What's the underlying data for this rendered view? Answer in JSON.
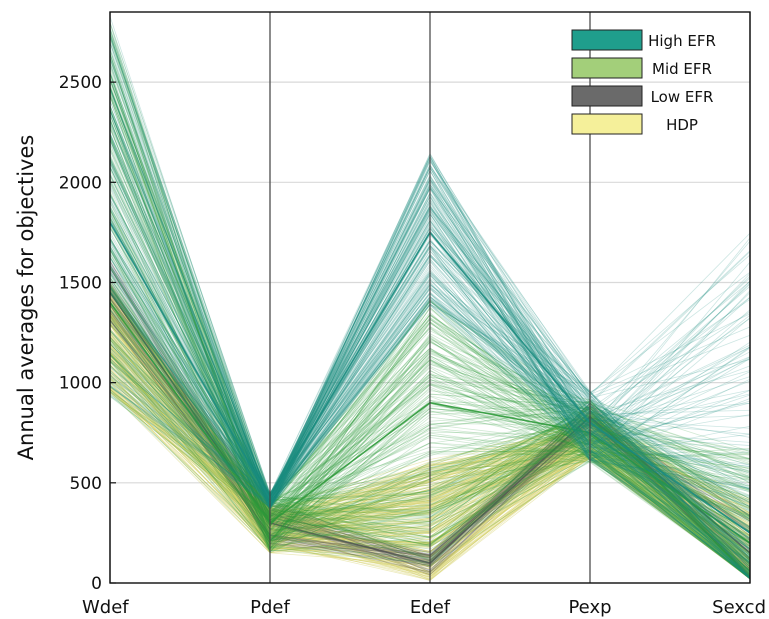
{
  "chart_data": {
    "type": "parallel-coordinates",
    "title": "",
    "ylabel": "Annual averages for objectives",
    "xlabel": "",
    "axes": [
      "Wdef",
      "Pdef",
      "Edef",
      "Pexp",
      "Sexcd"
    ],
    "ylim": [
      0,
      2850
    ],
    "yticks": [
      0,
      500,
      1000,
      1500,
      2000,
      2500
    ],
    "ytick_labels": [
      "0",
      "500",
      "1000",
      "1500",
      "2000",
      "2500"
    ],
    "grid": true,
    "legend_position": "top-right",
    "legend": [
      "High EFR",
      "Mid  EFR",
      "Low  EFR",
      "HDP"
    ],
    "series": [
      {
        "name": "High EFR",
        "color": "#1a8c80",
        "band_min": [
          930,
          370,
          1380,
          610,
          20
        ],
        "band_max": [
          2830,
          450,
          2150,
          960,
          1750
        ],
        "representative_line": [
          1800,
          420,
          1750,
          800,
          250
        ]
      },
      {
        "name": "Mid  EFR",
        "color": "#2e9a3a",
        "band_min": [
          930,
          150,
          80,
          600,
          20
        ],
        "band_max": [
          2800,
          440,
          1420,
          920,
          680
        ],
        "representative_line": [
          1400,
          300,
          900,
          750,
          200
        ]
      },
      {
        "name": "Low  EFR",
        "color": "#555555",
        "band_min": [
          1300,
          190,
          40,
          750,
          30
        ],
        "band_max": [
          1620,
          410,
          160,
          900,
          350
        ],
        "representative_line": [
          1450,
          300,
          100,
          830,
          150
        ]
      },
      {
        "name": "HDP",
        "color": "#d6d36e",
        "band_min": [
          950,
          150,
          10,
          620,
          20
        ],
        "band_max": [
          1500,
          380,
          620,
          850,
          420
        ],
        "representative_line": [
          1150,
          230,
          200,
          720,
          150
        ]
      }
    ]
  }
}
